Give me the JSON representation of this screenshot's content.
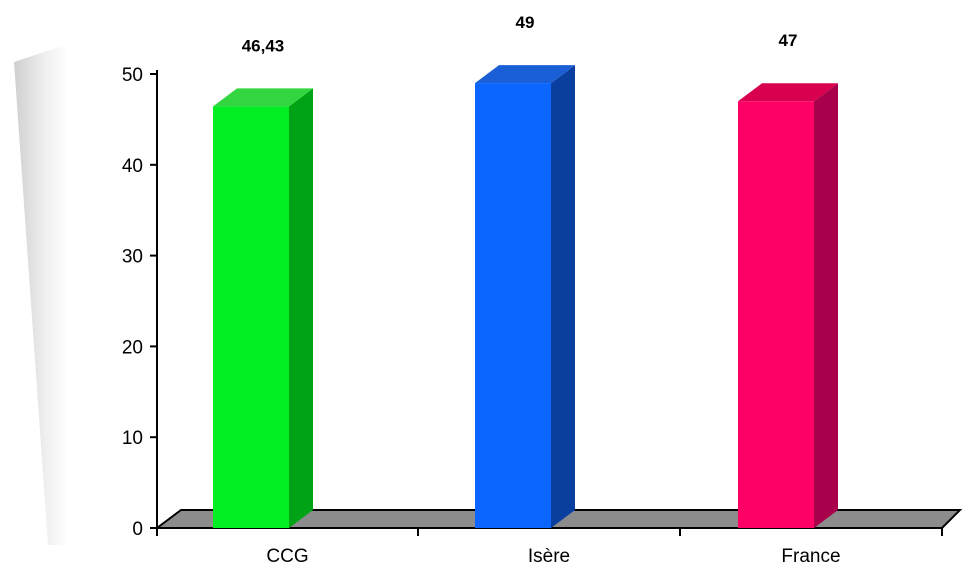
{
  "chart_data": {
    "type": "bar",
    "style": "3d",
    "categories": [
      "CCG",
      "Isère",
      "France"
    ],
    "values": [
      46.43,
      49,
      47
    ],
    "value_labels": [
      "46,43",
      "49",
      "47"
    ],
    "colors": [
      "#00ee22",
      "#0a66ff",
      "#ff0066"
    ],
    "side_colors": [
      "#00a316",
      "#0a3fa0",
      "#a8004a"
    ],
    "top_colors": [
      "#33d640",
      "#1a5fd6",
      "#d9004f"
    ],
    "floor_color": "#8c8c8c",
    "ylim": [
      0,
      50
    ],
    "yticks": [
      0,
      10,
      20,
      30,
      40,
      50
    ],
    "title": "",
    "xlabel": "",
    "ylabel": "",
    "grid": false,
    "legend": "none"
  }
}
